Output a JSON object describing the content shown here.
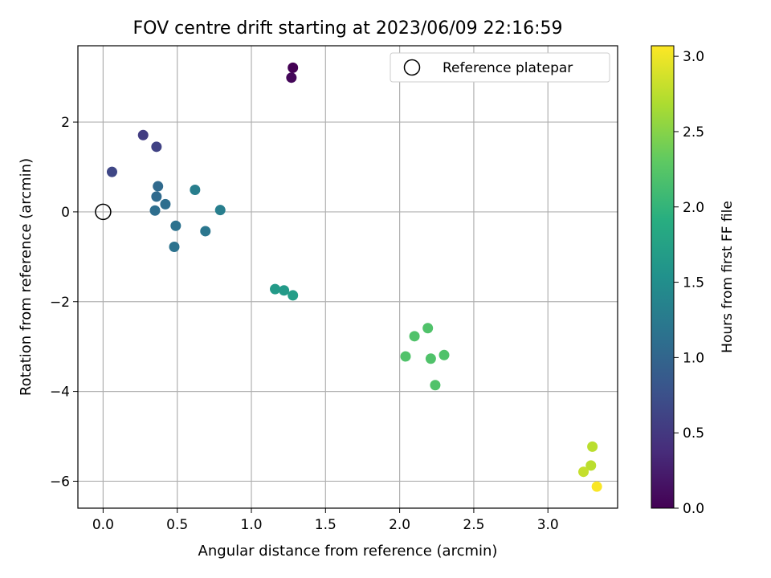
{
  "chart_data": {
    "type": "scatter",
    "title": "FOV centre drift starting at 2023/06/09 22:16:59",
    "xlabel": "Angular distance from reference (arcmin)",
    "ylabel": "Rotation from reference (arcmin)",
    "xlim": [
      -0.17,
      3.47
    ],
    "ylim": [
      -6.6,
      3.7
    ],
    "xticks": [
      0.0,
      0.5,
      1.0,
      1.5,
      2.0,
      2.5,
      3.0
    ],
    "xtick_labels": [
      "0.0",
      "0.5",
      "1.0",
      "1.5",
      "2.0",
      "2.5",
      "3.0"
    ],
    "yticks": [
      -6,
      -4,
      -2,
      0,
      2
    ],
    "ytick_labels": [
      "−6",
      "−4",
      "−2",
      "0",
      "2"
    ],
    "grid": true,
    "legend": {
      "position": "top-right",
      "entries": [
        {
          "label": "Reference platepar",
          "marker": "open-circle"
        }
      ]
    },
    "reference_point": {
      "x": 0.0,
      "y": 0.0,
      "label": "Reference platepar"
    },
    "colorbar": {
      "label": "Hours from first FF file",
      "colormap": "viridis",
      "range": [
        0.0,
        3.07
      ],
      "ticks": [
        0.0,
        0.5,
        1.0,
        1.5,
        2.0,
        2.5,
        3.0
      ],
      "tick_labels": [
        "0.0",
        "0.5",
        "1.0",
        "1.5",
        "2.0",
        "2.5",
        "3.0"
      ]
    },
    "points": [
      {
        "x": 1.28,
        "y": 3.21,
        "hours": 0.0
      },
      {
        "x": 1.27,
        "y": 2.99,
        "hours": 0.05
      },
      {
        "x": 0.27,
        "y": 1.71,
        "hours": 0.55
      },
      {
        "x": 0.36,
        "y": 1.45,
        "hours": 0.6
      },
      {
        "x": 0.06,
        "y": 0.89,
        "hours": 0.65
      },
      {
        "x": 0.37,
        "y": 0.57,
        "hours": 1.05
      },
      {
        "x": 0.36,
        "y": 0.34,
        "hours": 1.05
      },
      {
        "x": 0.42,
        "y": 0.17,
        "hours": 1.1
      },
      {
        "x": 0.35,
        "y": 0.03,
        "hours": 1.1
      },
      {
        "x": 0.62,
        "y": 0.49,
        "hours": 1.3
      },
      {
        "x": 0.79,
        "y": 0.04,
        "hours": 1.3
      },
      {
        "x": 0.49,
        "y": -0.31,
        "hours": 1.15
      },
      {
        "x": 0.69,
        "y": -0.43,
        "hours": 1.2
      },
      {
        "x": 0.48,
        "y": -0.78,
        "hours": 1.15
      },
      {
        "x": 1.16,
        "y": -1.72,
        "hours": 1.65
      },
      {
        "x": 1.22,
        "y": -1.75,
        "hours": 1.65
      },
      {
        "x": 1.28,
        "y": -1.86,
        "hours": 1.7
      },
      {
        "x": 2.19,
        "y": -2.59,
        "hours": 2.2
      },
      {
        "x": 2.1,
        "y": -2.77,
        "hours": 2.2
      },
      {
        "x": 2.04,
        "y": -3.22,
        "hours": 2.2
      },
      {
        "x": 2.21,
        "y": -3.27,
        "hours": 2.2
      },
      {
        "x": 2.3,
        "y": -3.19,
        "hours": 2.2
      },
      {
        "x": 2.24,
        "y": -3.86,
        "hours": 2.2
      },
      {
        "x": 3.3,
        "y": -5.23,
        "hours": 2.75
      },
      {
        "x": 3.29,
        "y": -5.65,
        "hours": 2.75
      },
      {
        "x": 3.24,
        "y": -5.79,
        "hours": 2.8
      },
      {
        "x": 3.33,
        "y": -6.12,
        "hours": 3.05
      }
    ]
  }
}
